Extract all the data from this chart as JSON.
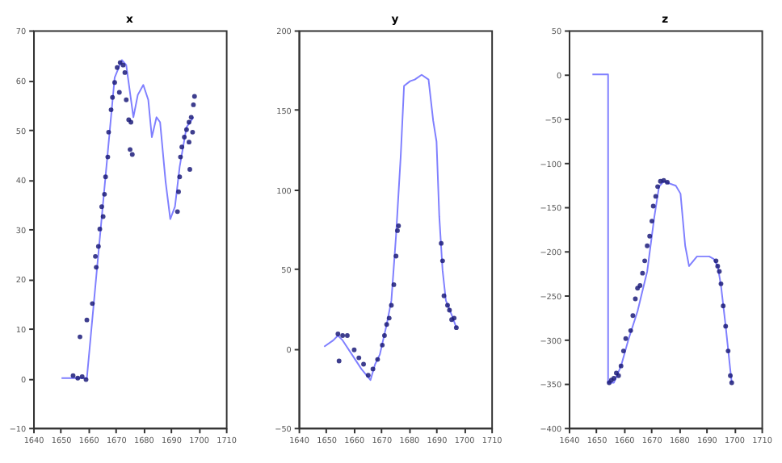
{
  "chart_data": [
    {
      "type": "line",
      "title": "x",
      "xlim": [
        1640,
        1710
      ],
      "xticks": [
        1640,
        1650,
        1660,
        1670,
        1680,
        1690,
        1700,
        1710
      ],
      "ylim": [
        -10,
        70
      ],
      "yticks": [
        -10,
        0,
        10,
        20,
        30,
        40,
        50,
        60,
        70
      ],
      "grid": false,
      "series": [
        {
          "type": "line",
          "color": "#7f7fff",
          "x": [
            1650.3,
            1659.5,
            1669.6,
            1672.2,
            1673.8,
            1676.4,
            1678,
            1680,
            1681.8,
            1683.1,
            1684.8,
            1686.1,
            1688.1,
            1689.8,
            1691.5,
            1693.2,
            1695.7,
            1698.2
          ],
          "values": [
            0,
            0,
            60.5,
            64,
            63,
            52.5,
            57,
            59,
            56,
            48.5,
            52.5,
            51.5,
            39.5,
            32,
            34.5,
            42.5,
            50.5,
            52.5
          ]
        },
        {
          "type": "scatter",
          "marker": "circle",
          "color": "#1c1c7a",
          "x": [
            1654.5,
            1656.2,
            1657.8,
            1659.2,
            1657,
            1659.5,
            1661.5,
            1662.9,
            1662.6,
            1663.7,
            1664.2,
            1665.4,
            1664.9,
            1665.9,
            1666.3,
            1667.1,
            1667.4,
            1668.3,
            1668.8,
            1669.6,
            1670.5,
            1671.6,
            1672.7,
            1673.3,
            1671.3,
            1673.8,
            1674.7,
            1675.5,
            1675.2,
            1676,
            1692.4,
            1692.8,
            1693.2,
            1693.5,
            1694,
            1694.9,
            1695.7,
            1696.6,
            1697.4,
            1697.9,
            1696.6,
            1696.9,
            1698.2,
            1698.6
          ],
          "values": [
            0.5,
            0,
            0.3,
            -0.3,
            8.3,
            11.7,
            15,
            22.3,
            24.5,
            26.5,
            30,
            32.5,
            34.5,
            37,
            40.5,
            44.5,
            49.5,
            54,
            56.5,
            59.5,
            62.5,
            63.5,
            63,
            61.5,
            57.5,
            56,
            52,
            51.5,
            46,
            45,
            33.5,
            37.5,
            40.5,
            44.5,
            46.5,
            48.5,
            50,
            51.5,
            52.5,
            49.5,
            47.5,
            42,
            55,
            56.7
          ]
        }
      ]
    },
    {
      "type": "line",
      "title": "y",
      "xlim": [
        1640,
        1710
      ],
      "xticks": [
        1640,
        1650,
        1660,
        1670,
        1680,
        1690,
        1700,
        1710
      ],
      "ylim": [
        -50,
        200
      ],
      "yticks": [
        -50,
        0,
        50,
        100,
        150,
        200
      ],
      "grid": false,
      "series": [
        {
          "type": "line",
          "color": "#7f7fff",
          "x": [
            1649.3,
            1652.6,
            1654.3,
            1656,
            1659.4,
            1662.8,
            1666.1,
            1667.8,
            1669.5,
            1672,
            1673.7,
            1675.4,
            1677.1,
            1678.3,
            1680.5,
            1682.2,
            1684.7,
            1687.2,
            1688.9,
            1690.1,
            1691.1,
            1692.3,
            1693.5,
            1695.6,
            1697.3
          ],
          "values": [
            1,
            5,
            8,
            5,
            -4,
            -13,
            -20,
            -10,
            -4,
            15,
            30,
            71,
            121,
            165,
            168,
            169,
            172,
            169,
            143,
            130,
            83,
            49,
            30,
            21,
            13
          ]
        },
        {
          "type": "scatter",
          "marker": "circle",
          "color": "#1c1c7a",
          "x": [
            1654.3,
            1656,
            1657.7,
            1654.7,
            1660.2,
            1661.9,
            1663.6,
            1665.3,
            1667,
            1668.7,
            1670.4,
            1671.2,
            1672,
            1672.9,
            1673.7,
            1674.6,
            1675.4,
            1675.9,
            1676.3,
            1691.8,
            1692.3,
            1692.8,
            1694.1,
            1694.8,
            1695.6,
            1696.5,
            1697.3
          ],
          "values": [
            9,
            8,
            8,
            -8,
            -1,
            -6,
            -10,
            -17,
            -13,
            -7,
            2,
            8,
            15,
            19,
            27,
            40,
            58,
            74,
            77,
            66,
            55,
            33,
            27,
            24,
            18,
            19,
            13
          ]
        }
      ]
    },
    {
      "type": "line",
      "title": "z",
      "xlim": [
        1640,
        1710
      ],
      "xticks": [
        1640,
        1650,
        1660,
        1670,
        1680,
        1690,
        1700,
        1710
      ],
      "ylim": [
        -400,
        50
      ],
      "yticks": [
        -400,
        -350,
        -300,
        -250,
        -200,
        -150,
        -100,
        -50,
        0,
        50
      ],
      "grid": false,
      "series": [
        {
          "type": "line",
          "color": "#7f7fff",
          "x": [
            1648.6,
            1654.3,
            1654.3,
            1656.4,
            1659,
            1661.6,
            1665,
            1668.5,
            1671.1,
            1672.8,
            1674.5,
            1678.9,
            1680.6,
            1682.3,
            1683.7,
            1686.6,
            1691,
            1692.7,
            1694.1,
            1695.3,
            1697,
            1698.7,
            1699.2
          ],
          "values": [
            0,
            0,
            -349,
            -349,
            -330,
            -301,
            -268,
            -223,
            -161,
            -127,
            -121,
            -126,
            -135,
            -194,
            -217,
            -206,
            -206,
            -209,
            -217,
            -239,
            -285,
            -335,
            -349
          ]
        },
        {
          "type": "scatter",
          "marker": "circle",
          "color": "#1c1c7a",
          "x": [
            1654.7,
            1655.5,
            1656.4,
            1657.3,
            1658.1,
            1659,
            1659.9,
            1660.7,
            1662.5,
            1663.3,
            1664.2,
            1665,
            1665.9,
            1666.8,
            1667.6,
            1668.5,
            1669.4,
            1670.2,
            1670.7,
            1671.6,
            1672.3,
            1673.3,
            1674.5,
            1675.8,
            1694.1,
            1693.5,
            1694.7,
            1695.3,
            1696.1,
            1697,
            1697.9,
            1698.7,
            1699.2
          ],
          "values": [
            -349,
            -346,
            -344,
            -338,
            -341,
            -330,
            -313,
            -299,
            -290,
            -273,
            -254,
            -242,
            -239,
            -225,
            -211,
            -194,
            -183,
            -166,
            -149,
            -138,
            -127,
            -121,
            -120,
            -122,
            -217,
            -211,
            -223,
            -237,
            -262,
            -285,
            -313,
            -341,
            -349
          ]
        }
      ]
    }
  ]
}
